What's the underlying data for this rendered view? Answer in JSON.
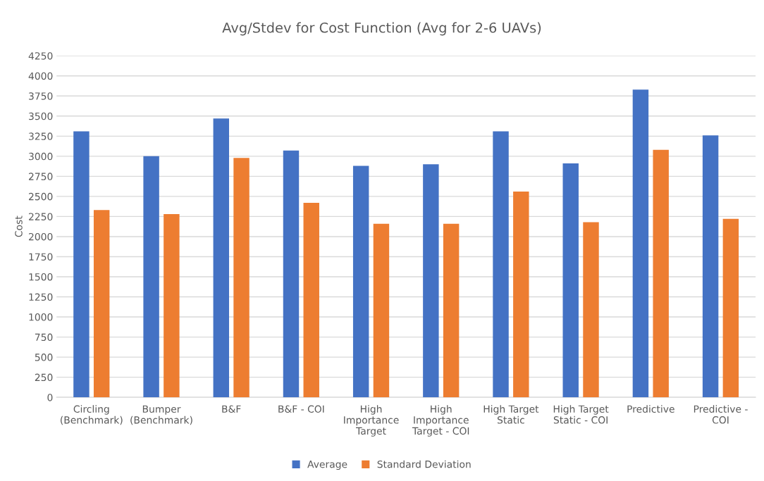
{
  "chart_data": {
    "type": "bar",
    "title": "Avg/Stdev for Cost Function (Avg for 2-6 UAVs)",
    "ylabel": "Cost",
    "categories": [
      "Circling\n(Benchmark)",
      "Bumper\n(Benchmark)",
      "B&F",
      "B&F - COI",
      "High\nImportance\nTarget",
      "High\nImportance\nTarget - COI",
      "High Target\nStatic",
      "High Target\nStatic - COI",
      "Predictive",
      "Predictive -\nCOI"
    ],
    "series": [
      {
        "name": "Average",
        "color": "#4472c4",
        "values": [
          3310,
          3000,
          3470,
          3070,
          2880,
          2900,
          3310,
          2910,
          3830,
          3260
        ]
      },
      {
        "name": "Standard Deviation",
        "color": "#ed7d31",
        "values": [
          2330,
          2280,
          2980,
          2420,
          2160,
          2160,
          2560,
          2180,
          3080,
          2220
        ]
      }
    ],
    "ylim": [
      0,
      4250
    ],
    "yticks": [
      0,
      250,
      500,
      750,
      1000,
      1250,
      1500,
      1750,
      2000,
      2250,
      2500,
      2750,
      3000,
      3250,
      3500,
      3750,
      4000,
      4250
    ],
    "grid": "y",
    "legend": "bottom"
  }
}
